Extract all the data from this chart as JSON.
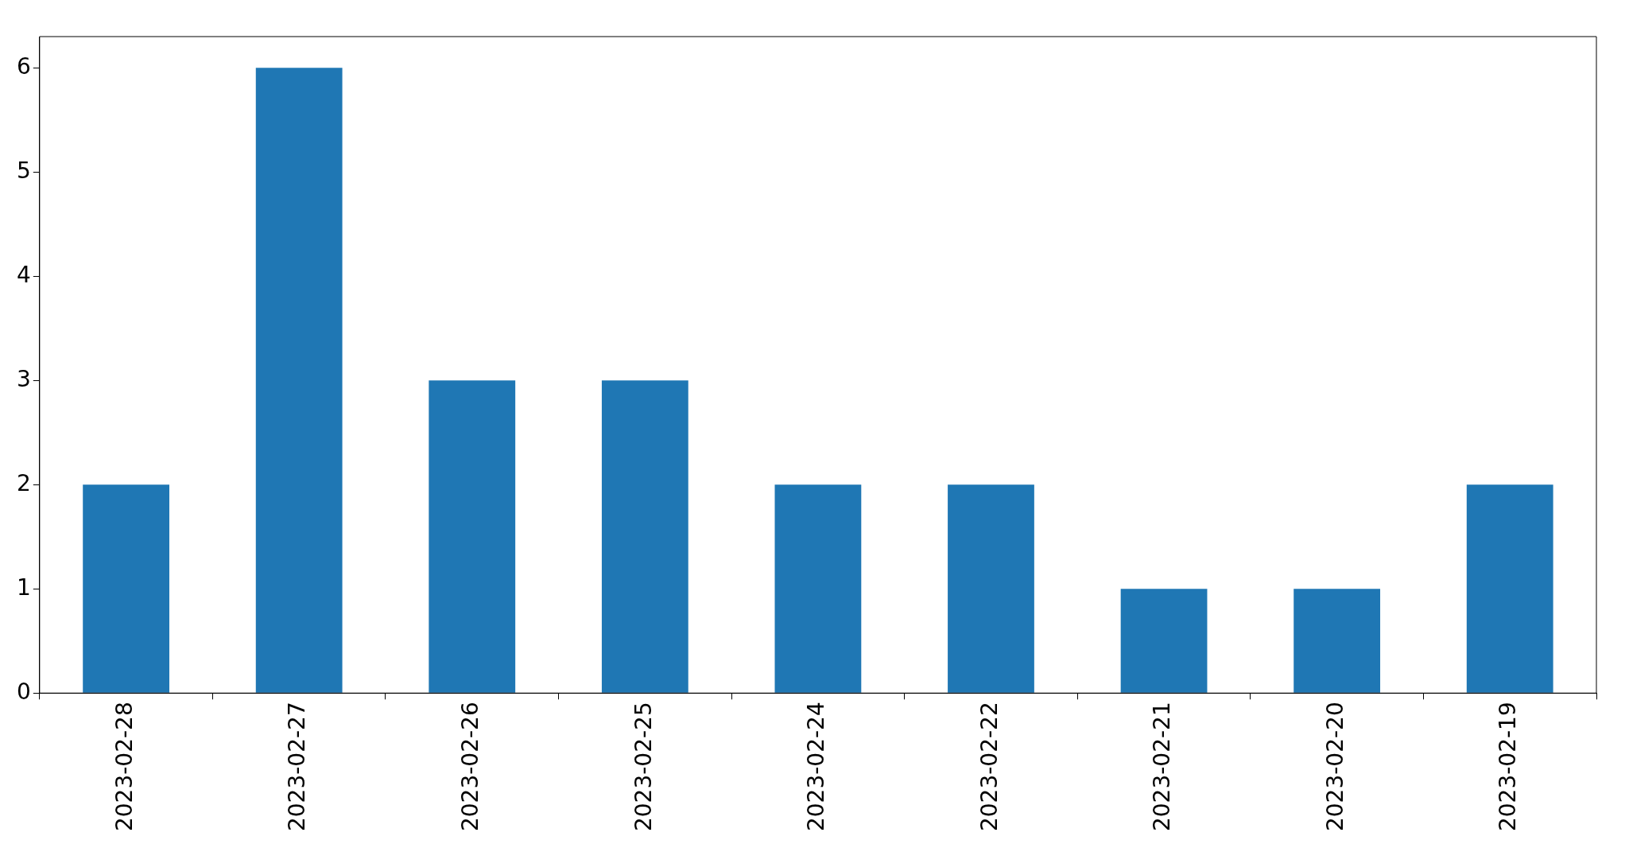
{
  "chart_data": {
    "type": "bar",
    "categories": [
      "2023-02-28",
      "2023-02-27",
      "2023-02-26",
      "2023-02-25",
      "2023-02-24",
      "2023-02-22",
      "2023-02-21",
      "2023-02-20",
      "2023-02-19"
    ],
    "values": [
      2,
      6,
      3,
      3,
      2,
      2,
      1,
      1,
      2
    ],
    "color": "#1f77b4",
    "ylim": [
      0,
      6.3
    ],
    "yticks": [
      0,
      1,
      2,
      3,
      4,
      5,
      6
    ],
    "grid": false,
    "legend": false
  }
}
